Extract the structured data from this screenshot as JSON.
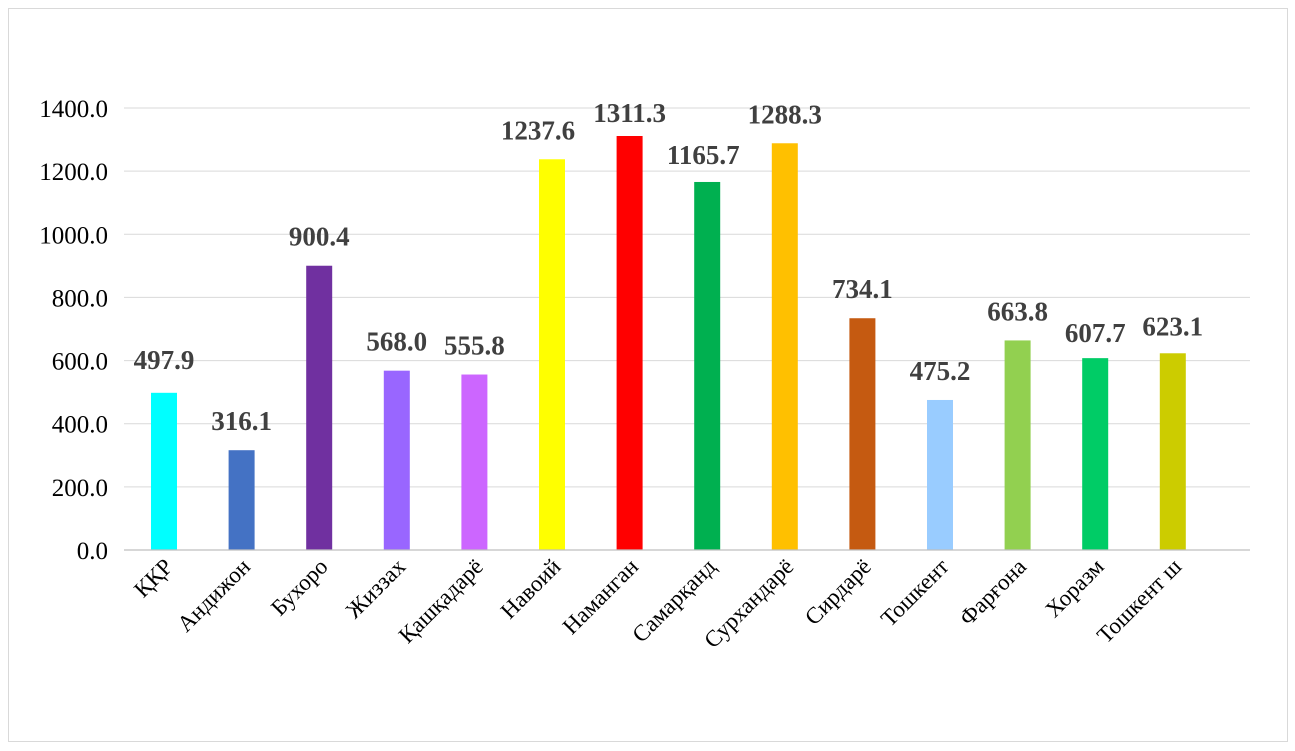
{
  "chart_data": {
    "type": "bar",
    "title": "",
    "xlabel": "",
    "ylabel": "",
    "categories": [
      "ҚҚР",
      "Андижон",
      "Бухоро",
      "Жиззах",
      "Қашқадарё",
      "Навоий",
      "Наманган",
      "Самарқанд",
      "Сурхандарё",
      "Сирдарё",
      "Тошкент",
      "Фарғона",
      "Хоразм",
      "Тошкент ш"
    ],
    "values": [
      497.9,
      316.1,
      900.4,
      568.0,
      555.8,
      1237.6,
      1311.3,
      1165.7,
      1288.3,
      734.1,
      475.2,
      663.8,
      607.7,
      623.1
    ],
    "value_labels": [
      "497.9",
      "316.1",
      "900.4",
      "568.0",
      "555.8",
      "1237.6",
      "1311.3",
      "1165.7",
      "1288.3",
      "734.1",
      "475.2",
      "663.8",
      "607.7",
      "623.1"
    ],
    "colors": [
      "#00FFFF",
      "#4472C4",
      "#7030A0",
      "#9966FF",
      "#CC66FF",
      "#FFFF00",
      "#FF0000",
      "#00B050",
      "#FFC000",
      "#C55A11",
      "#99CCFF",
      "#92D050",
      "#00CC66",
      "#CCCC00"
    ],
    "ylim": [
      0,
      1400
    ],
    "yticks": [
      0,
      200,
      400,
      600,
      800,
      1000,
      1200,
      1400
    ],
    "ytick_labels": [
      "0.0",
      "200.0",
      "400.0",
      "600.0",
      "800.0",
      "1000.0",
      "1200.0",
      "1400.0"
    ],
    "grid": true,
    "legend": "none"
  }
}
